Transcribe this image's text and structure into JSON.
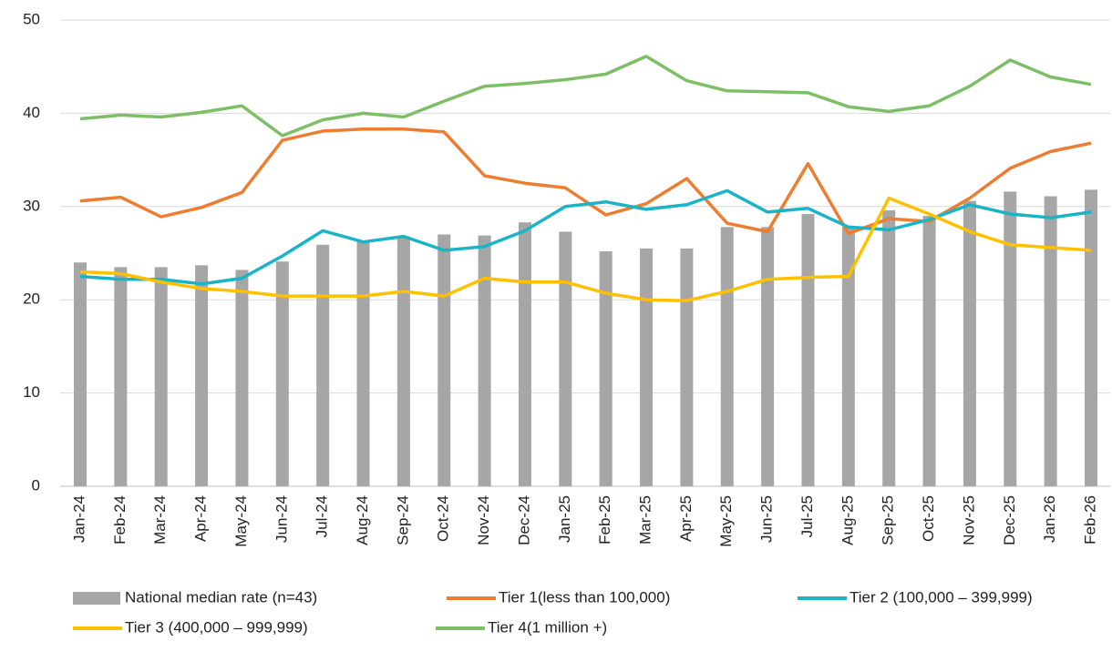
{
  "chart_data": {
    "type": "combo",
    "categories": [
      "Jan-24",
      "Feb-24",
      "Mar-24",
      "Apr-24",
      "May-24",
      "Jun-24",
      "Jul-24",
      "Aug-24",
      "Sep-24",
      "Oct-24",
      "Nov-24",
      "Dec-24",
      "Jan-25",
      "Feb-25",
      "Mar-25",
      "Apr-25",
      "May-25",
      "Jun-25",
      "Jul-25",
      "Aug-25",
      "Sep-25",
      "Oct-25",
      "Nov-25",
      "Dec-25",
      "Jan-26",
      "Feb-26"
    ],
    "ylim": [
      0,
      50
    ],
    "yticks": [
      0,
      10,
      20,
      30,
      40,
      50
    ],
    "grid": true,
    "legend": "bottom",
    "series": [
      {
        "name": "National median rate (n=43)",
        "type": "bar",
        "color": "#a6a6a6",
        "values": [
          24,
          23.5,
          23.5,
          23.7,
          23.2,
          24.1,
          25.9,
          26.3,
          26.8,
          27,
          26.9,
          28.3,
          27.3,
          25.2,
          25.5,
          25.5,
          27.8,
          27.8,
          29.2,
          27.8,
          29.6,
          29,
          30.6,
          31.6,
          31.1,
          31.8
        ]
      },
      {
        "name": "Tier 1(less than 100,000)",
        "type": "line",
        "color": "#ed7d31",
        "values": [
          30.6,
          31.0,
          28.9,
          29.9,
          31.5,
          37.1,
          38.1,
          38.3,
          38.3,
          38.0,
          33.3,
          32.5,
          32.0,
          29.1,
          30.3,
          33.0,
          28.2,
          27.3,
          34.6,
          27.1,
          28.7,
          28.4,
          30.9,
          34.1,
          35.9,
          36.8
        ]
      },
      {
        "name": "Tier 2 (100,000 – 399,999)",
        "type": "line",
        "color": "#1ab4c6",
        "values": [
          22.5,
          22.2,
          22.2,
          21.7,
          22.3,
          24.7,
          27.4,
          26.2,
          26.8,
          25.3,
          25.7,
          27.4,
          30.0,
          30.5,
          29.7,
          30.2,
          31.7,
          29.4,
          29.8,
          27.8,
          27.5,
          28.6,
          30.2,
          29.2,
          28.8,
          29.4
        ]
      },
      {
        "name": "Tier 3 (400,000 – 999,999)",
        "type": "line",
        "color": "#ffc000",
        "values": [
          23.0,
          22.8,
          21.9,
          21.2,
          20.9,
          20.4,
          20.4,
          20.4,
          20.9,
          20.4,
          22.3,
          21.9,
          21.9,
          20.7,
          20.0,
          19.9,
          20.9,
          22.2,
          22.4,
          22.5,
          30.9,
          29.2,
          27.3,
          25.9,
          25.6,
          25.3
        ]
      },
      {
        "name": "Tier 4(1 million +)",
        "type": "line",
        "color": "#7dbf67",
        "values": [
          39.4,
          39.8,
          39.6,
          40.1,
          40.8,
          37.6,
          39.3,
          40.0,
          39.6,
          41.3,
          42.9,
          43.2,
          43.6,
          44.2,
          46.1,
          43.5,
          42.4,
          42.3,
          42.2,
          40.7,
          40.2,
          40.8,
          42.9,
          45.7,
          43.9,
          43.1
        ]
      }
    ]
  }
}
